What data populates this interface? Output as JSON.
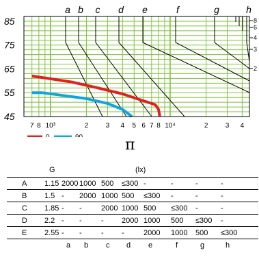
{
  "chart_data": {
    "type": "line",
    "y_ticks": [
      "85",
      "75",
      "65",
      "55",
      "45"
    ],
    "x_ticks": [
      "7",
      "8",
      "10³",
      "2",
      "3",
      "4",
      "5",
      "6",
      "7",
      "8",
      "10⁴",
      "2",
      "3",
      "4"
    ],
    "x_scale": "log",
    "top_labels": [
      "a",
      "b",
      "c",
      "d",
      "e",
      "f",
      "g",
      "h"
    ],
    "right_labels": [
      "8",
      "6",
      "4",
      "3",
      "2"
    ],
    "grid": true,
    "legend_placement": "bottom-left",
    "series": [
      {
        "name": "0",
        "color": "#e0211d",
        "x": [
          700,
          900,
          1500,
          2500,
          4000,
          6500,
          7500,
          8000,
          8200
        ],
        "y": [
          62,
          61.2,
          59.5,
          57.0,
          54.5,
          51.0,
          50.0,
          48.0,
          45
        ]
      },
      {
        "name": "90",
        "color": "#10a5dd",
        "x": [
          700,
          850,
          1200,
          2000,
          3000,
          4000,
          4800
        ],
        "y": [
          55,
          55,
          54,
          52.5,
          50.5,
          48,
          45
        ]
      }
    ]
  },
  "symbol": "π",
  "table": {
    "header": {
      "g": "G",
      "unit": "(lx)"
    },
    "rows": [
      {
        "id": "A",
        "g": "1.15",
        "cells": [
          "2000",
          "1000",
          "500",
          "≤300",
          "-",
          "-",
          "-",
          "-"
        ]
      },
      {
        "id": "B",
        "g": "1.5",
        "cells": [
          "-",
          "2000",
          "1000",
          "500",
          "≤300",
          "-",
          "-",
          "-"
        ]
      },
      {
        "id": "C",
        "g": "1.85",
        "cells": [
          "-",
          "-",
          "2000",
          "1000",
          "500",
          "≤300",
          "-",
          "-"
        ]
      },
      {
        "id": "D",
        "g": "2.2",
        "cells": [
          "-",
          "-",
          "-",
          "2000",
          "1000",
          "500",
          "≤300",
          "-"
        ]
      },
      {
        "id": "E",
        "g": "2.55",
        "cells": [
          "-",
          "-",
          "-",
          "-",
          "2000",
          "1000",
          "500",
          "≤300"
        ]
      }
    ],
    "column_labels": [
      "a",
      "b",
      "c",
      "d",
      "e",
      "f",
      "g",
      "h"
    ]
  }
}
